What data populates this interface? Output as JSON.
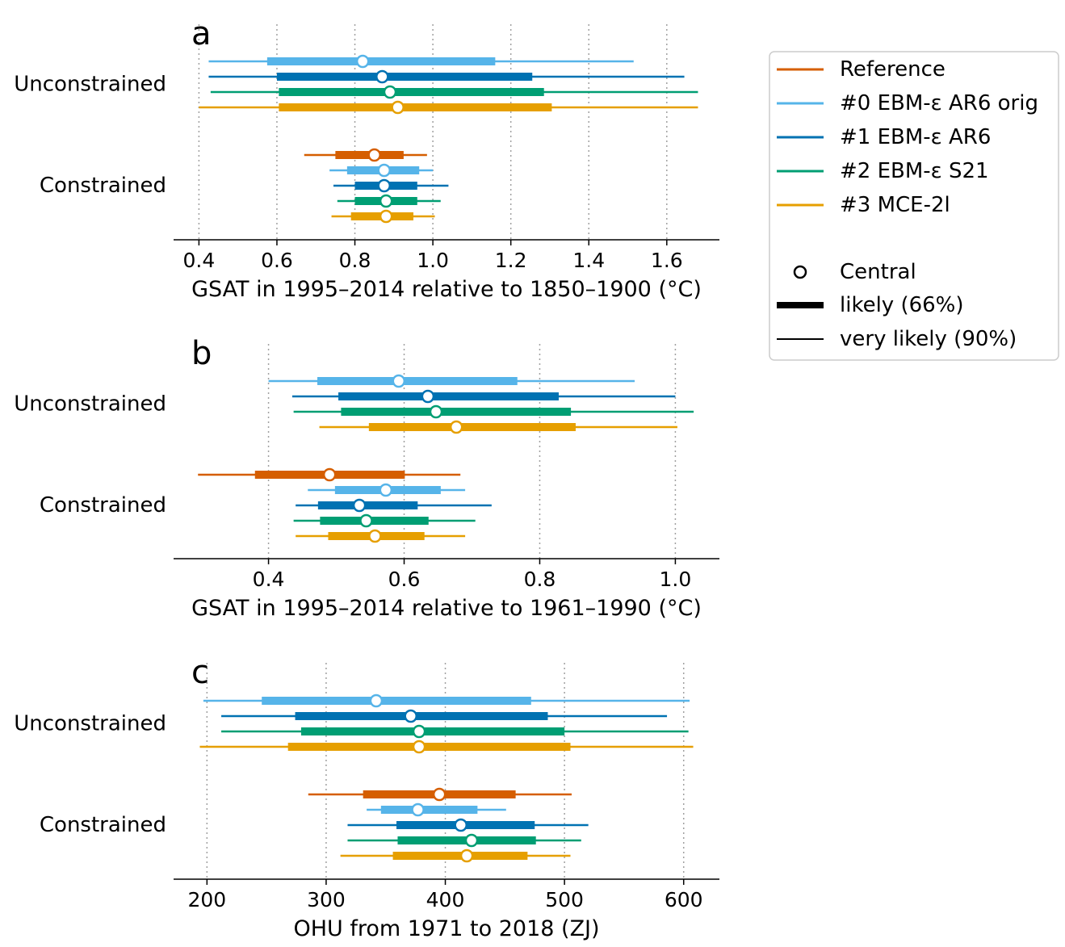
{
  "colors": {
    "Reference": "#d55e00",
    "#0 EBM-ε AR6 orig": "#56b4e9",
    "#1 EBM-ε AR6": "#0072b2",
    "#2 EBM-ε S21": "#009e73",
    "#3 MCE-2l": "#e69f00"
  },
  "legend": {
    "placement": "right",
    "series_items": [
      "Reference",
      "#0 EBM-ε AR6 orig",
      "#1 EBM-ε AR6",
      "#2 EBM-ε S21",
      "#3 MCE-2l"
    ],
    "central_label": "Central",
    "likely_label": "likely (66%)",
    "very_likely_label": "very likely (90%)"
  },
  "chart_data": [
    {
      "type": "range",
      "panel": "a",
      "xlabel": "GSAT in 1995–2014 relative to 1850–1900 (°C)",
      "xlim": [
        0.335,
        1.735
      ],
      "xticks": [
        0.4,
        0.6,
        0.8,
        1.0,
        1.2,
        1.4,
        1.6
      ],
      "xtick_labels": [
        "0.4",
        "0.6",
        "0.8",
        "1.0",
        "1.2",
        "1.4",
        "1.6"
      ],
      "grid": "vertical dotted",
      "groups": [
        {
          "label": "Unconstrained",
          "rows": [
            {
              "series": "#0 EBM-ε AR6 orig",
              "central": 0.82,
              "likely": [
                0.575,
                1.16
              ],
              "very_likely": [
                0.425,
                1.515
              ]
            },
            {
              "series": "#1 EBM-ε AR6",
              "central": 0.87,
              "likely": [
                0.6,
                1.255
              ],
              "very_likely": [
                0.425,
                1.645
              ]
            },
            {
              "series": "#2 EBM-ε S21",
              "central": 0.89,
              "likely": [
                0.605,
                1.285
              ],
              "very_likely": [
                0.43,
                1.68
              ]
            },
            {
              "series": "#3 MCE-2l",
              "central": 0.91,
              "likely": [
                0.605,
                1.305
              ],
              "very_likely": [
                0.4,
                1.68
              ]
            }
          ]
        },
        {
          "label": "Constrained",
          "rows": [
            {
              "series": "Reference",
              "central": 0.85,
              "likely": [
                0.75,
                0.925
              ],
              "very_likely": [
                0.67,
                0.985
              ]
            },
            {
              "series": "#0 EBM-ε AR6 orig",
              "central": 0.875,
              "likely": [
                0.78,
                0.965
              ],
              "very_likely": [
                0.735,
                1.0
              ]
            },
            {
              "series": "#1 EBM-ε AR6",
              "central": 0.875,
              "likely": [
                0.8,
                0.96
              ],
              "very_likely": [
                0.745,
                1.04
              ]
            },
            {
              "series": "#2 EBM-ε S21",
              "central": 0.88,
              "likely": [
                0.8,
                0.96
              ],
              "very_likely": [
                0.755,
                1.02
              ]
            },
            {
              "series": "#3 MCE-2l",
              "central": 0.88,
              "likely": [
                0.79,
                0.95
              ],
              "very_likely": [
                0.74,
                1.005
              ]
            }
          ]
        }
      ]
    },
    {
      "type": "range",
      "panel": "b",
      "xlabel": "GSAT in 1995–2014 relative to 1961–1990 (°C)",
      "xlim": [
        0.26,
        1.065
      ],
      "xticks": [
        0.4,
        0.6,
        0.8,
        1.0
      ],
      "xtick_labels": [
        "0.4",
        "0.6",
        "0.8",
        "1.0"
      ],
      "grid": "vertical dotted",
      "groups": [
        {
          "label": "Unconstrained",
          "rows": [
            {
              "series": "#0 EBM-ε AR6 orig",
              "central": 0.592,
              "likely": [
                0.472,
                0.767
              ],
              "very_likely": [
                0.4,
                0.94
              ]
            },
            {
              "series": "#1 EBM-ε AR6",
              "central": 0.635,
              "likely": [
                0.503,
                0.828
              ],
              "very_likely": [
                0.435,
                1.0
              ]
            },
            {
              "series": "#2 EBM-ε S21",
              "central": 0.647,
              "likely": [
                0.507,
                0.846
              ],
              "very_likely": [
                0.437,
                1.027
              ]
            },
            {
              "series": "#3 MCE-2l",
              "central": 0.677,
              "likely": [
                0.548,
                0.853
              ],
              "very_likely": [
                0.475,
                1.003
              ]
            }
          ]
        },
        {
          "label": "Constrained",
          "rows": [
            {
              "series": "Reference",
              "central": 0.49,
              "likely": [
                0.38,
                0.601
              ],
              "very_likely": [
                0.296,
                0.683
              ]
            },
            {
              "series": "#0 EBM-ε AR6 orig",
              "central": 0.573,
              "likely": [
                0.498,
                0.654
              ],
              "very_likely": [
                0.458,
                0.69
              ]
            },
            {
              "series": "#1 EBM-ε AR6",
              "central": 0.534,
              "likely": [
                0.473,
                0.62
              ],
              "very_likely": [
                0.44,
                0.729
              ]
            },
            {
              "series": "#2 EBM-ε S21",
              "central": 0.544,
              "likely": [
                0.476,
                0.636
              ],
              "very_likely": [
                0.437,
                0.705
              ]
            },
            {
              "series": "#3 MCE-2l",
              "central": 0.557,
              "likely": [
                0.488,
                0.63
              ],
              "very_likely": [
                0.44,
                0.69
              ]
            }
          ]
        }
      ]
    },
    {
      "type": "range",
      "panel": "c",
      "xlabel": "OHU from 1971 to 2018 (ZJ)",
      "xlim": [
        172,
        630
      ],
      "xticks": [
        200,
        300,
        400,
        500,
        600
      ],
      "xtick_labels": [
        "200",
        "300",
        "400",
        "500",
        "600"
      ],
      "grid": "vertical dotted",
      "groups": [
        {
          "label": "Unconstrained",
          "rows": [
            {
              "series": "#0 EBM-ε AR6 orig",
              "central": 342,
              "likely": [
                246,
                472
              ],
              "very_likely": [
                197,
                605
              ]
            },
            {
              "series": "#1 EBM-ε AR6",
              "central": 371,
              "likely": [
                274,
                486
              ],
              "very_likely": [
                212,
                586
              ]
            },
            {
              "series": "#2 EBM-ε S21",
              "central": 378,
              "likely": [
                279,
                500
              ],
              "very_likely": [
                212,
                604
              ]
            },
            {
              "series": "#3 MCE-2l",
              "central": 378,
              "likely": [
                268,
                505
              ],
              "very_likely": [
                194,
                608
              ]
            }
          ]
        },
        {
          "label": "Constrained",
          "rows": [
            {
              "series": "Reference",
              "central": 395,
              "likely": [
                331,
                459
              ],
              "very_likely": [
                285,
                506
              ]
            },
            {
              "series": "#0 EBM-ε AR6 orig",
              "central": 377,
              "likely": [
                346,
                427
              ],
              "very_likely": [
                334,
                451
              ]
            },
            {
              "series": "#1 EBM-ε AR6",
              "central": 413,
              "likely": [
                359,
                475
              ],
              "very_likely": [
                318,
                520
              ]
            },
            {
              "series": "#2 EBM-ε S21",
              "central": 422,
              "likely": [
                360,
                476
              ],
              "very_likely": [
                318,
                514
              ]
            },
            {
              "series": "#3 MCE-2l",
              "central": 418,
              "likely": [
                356,
                469
              ],
              "very_likely": [
                312,
                505
              ]
            }
          ]
        }
      ]
    }
  ]
}
